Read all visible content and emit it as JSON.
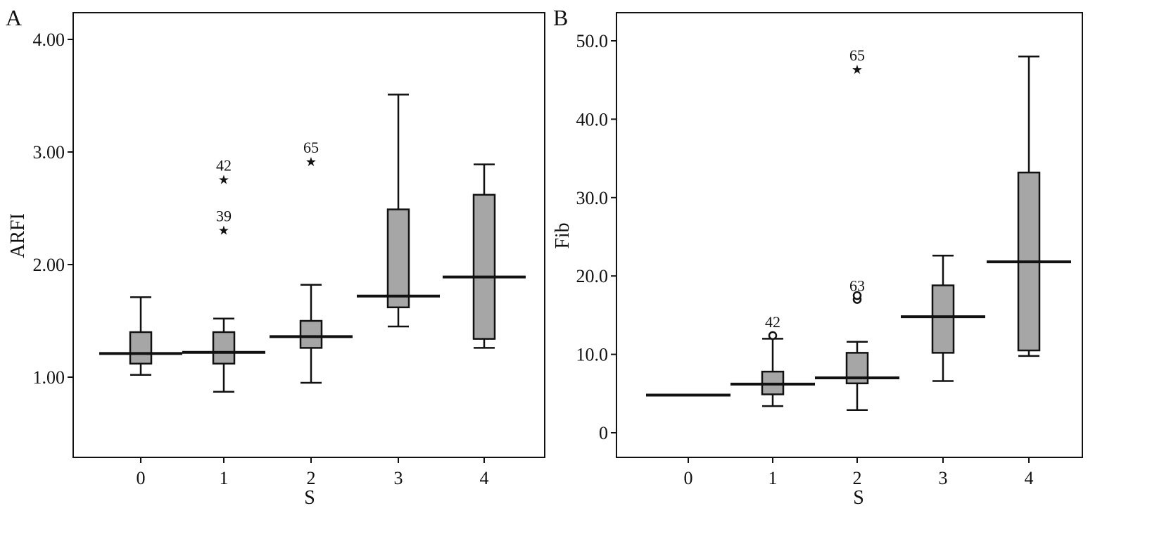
{
  "panels": [
    {
      "letter": "A",
      "chart_data": {
        "type": "box",
        "title": "",
        "xlabel": "S",
        "ylabel": "ARFI",
        "categories": [
          "0",
          "1",
          "2",
          "3",
          "4"
        ],
        "yticks": [
          "1.00",
          "2.00",
          "3.00",
          "4.00"
        ],
        "ylim": [
          0.3,
          4.1
        ],
        "grid": false,
        "boxes": [
          {
            "category": "0",
            "whisker_low": 1.02,
            "q1": 1.12,
            "median": 1.21,
            "q3": 1.4,
            "whisker_high": 1.71
          },
          {
            "category": "1",
            "whisker_low": 0.87,
            "q1": 1.12,
            "median": 1.22,
            "q3": 1.4,
            "whisker_high": 1.52
          },
          {
            "category": "2",
            "whisker_low": 0.95,
            "q1": 1.26,
            "median": 1.36,
            "q3": 1.5,
            "whisker_high": 1.82
          },
          {
            "category": "3",
            "whisker_low": 1.45,
            "q1": 1.62,
            "median": 1.72,
            "q3": 2.49,
            "whisker_high": 3.51
          },
          {
            "category": "4",
            "whisker_low": 1.26,
            "q1": 1.34,
            "median": 1.89,
            "q3": 2.62,
            "whisker_high": 2.89
          }
        ],
        "outliers": [
          {
            "category": "1",
            "value": 2.76,
            "label": "42",
            "marker": "★"
          },
          {
            "category": "1",
            "value": 2.31,
            "label": "39",
            "marker": "★"
          },
          {
            "category": "2",
            "value": 2.92,
            "label": "65",
            "marker": "★"
          }
        ]
      }
    },
    {
      "letter": "B",
      "chart_data": {
        "type": "box",
        "title": "",
        "xlabel": "S",
        "ylabel": "Fib",
        "categories": [
          "0",
          "1",
          "2",
          "3",
          "4"
        ],
        "yticks": [
          "0",
          "10.0",
          "20.0",
          "30.0",
          "40.0",
          "50.0"
        ],
        "ylim": [
          -2.5,
          53
        ],
        "grid": false,
        "boxes": [
          {
            "category": "0",
            "whisker_low": 4.8,
            "q1": 4.8,
            "median": 4.8,
            "q3": 4.8,
            "whisker_high": 4.8
          },
          {
            "category": "1",
            "whisker_low": 3.4,
            "q1": 4.9,
            "median": 6.2,
            "q3": 7.8,
            "whisker_high": 12.0
          },
          {
            "category": "2",
            "whisker_low": 2.9,
            "q1": 6.3,
            "median": 7.0,
            "q3": 10.2,
            "whisker_high": 11.6
          },
          {
            "category": "3",
            "whisker_low": 6.6,
            "q1": 10.2,
            "median": 14.8,
            "q3": 18.8,
            "whisker_high": 22.6
          },
          {
            "category": "4",
            "whisker_low": 9.8,
            "q1": 10.5,
            "median": 21.8,
            "q3": 33.2,
            "whisker_high": 48.0
          }
        ],
        "outliers": [
          {
            "category": "1",
            "value": 12.4,
            "label": "42",
            "marker": "o"
          },
          {
            "category": "2",
            "value": 17.0,
            "label": "63",
            "marker": "o"
          },
          {
            "category": "2",
            "value": 17.5,
            "label": "",
            "marker": "o"
          },
          {
            "category": "2",
            "value": 46.4,
            "label": "65",
            "marker": "★"
          }
        ]
      }
    }
  ]
}
